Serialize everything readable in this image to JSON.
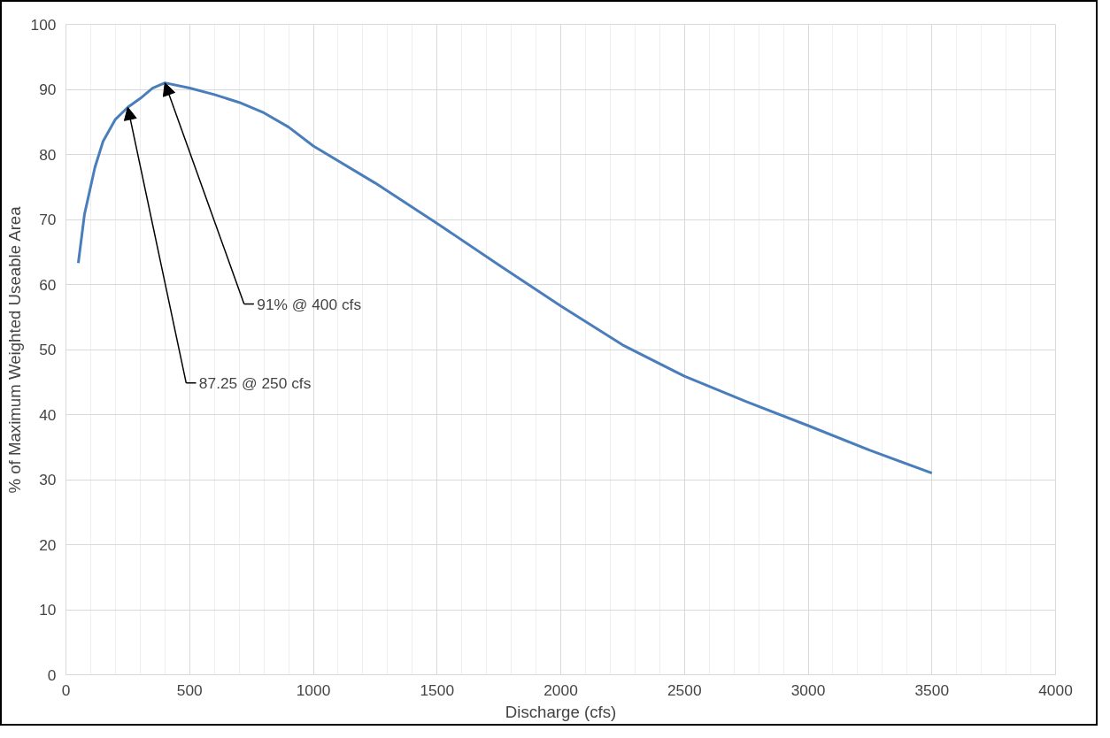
{
  "chart_data": {
    "type": "line",
    "xlabel": "Discharge (cfs)",
    "ylabel": "% of Maximum Weighted Useable Area",
    "x": [
      50,
      75,
      117,
      150,
      200,
      250,
      300,
      350,
      400,
      500,
      600,
      700,
      800,
      900,
      1000,
      1250,
      1500,
      1750,
      2000,
      2250,
      2500,
      2750,
      3000,
      3250,
      3500
    ],
    "series": [
      {
        "color": "#4a7ebb",
        "values": [
          63.3,
          70.8,
          78,
          82,
          85.4,
          87.25,
          88.6,
          90.2,
          91,
          90.2,
          89.2,
          88,
          86.4,
          84.2,
          81.3,
          75.6,
          69.4,
          63,
          56.7,
          50.7,
          45.9,
          42,
          38.3,
          34.5,
          31
        ]
      }
    ],
    "xlim": [
      0,
      4000
    ],
    "xticks": [
      0,
      500,
      1000,
      1500,
      2000,
      2500,
      3000,
      3500,
      4000
    ],
    "ylim": [
      0,
      100
    ],
    "yticks": [
      0,
      10,
      20,
      30,
      40,
      50,
      60,
      70,
      80,
      90,
      100
    ],
    "grid": true,
    "marker": "none",
    "line_style": "solid",
    "annotations": [
      {
        "text": "87.25 @ 250 cfs",
        "x": 250,
        "y": 87.25
      },
      {
        "text": "91% @ 400 cfs",
        "x": 400,
        "y": 91
      }
    ]
  }
}
